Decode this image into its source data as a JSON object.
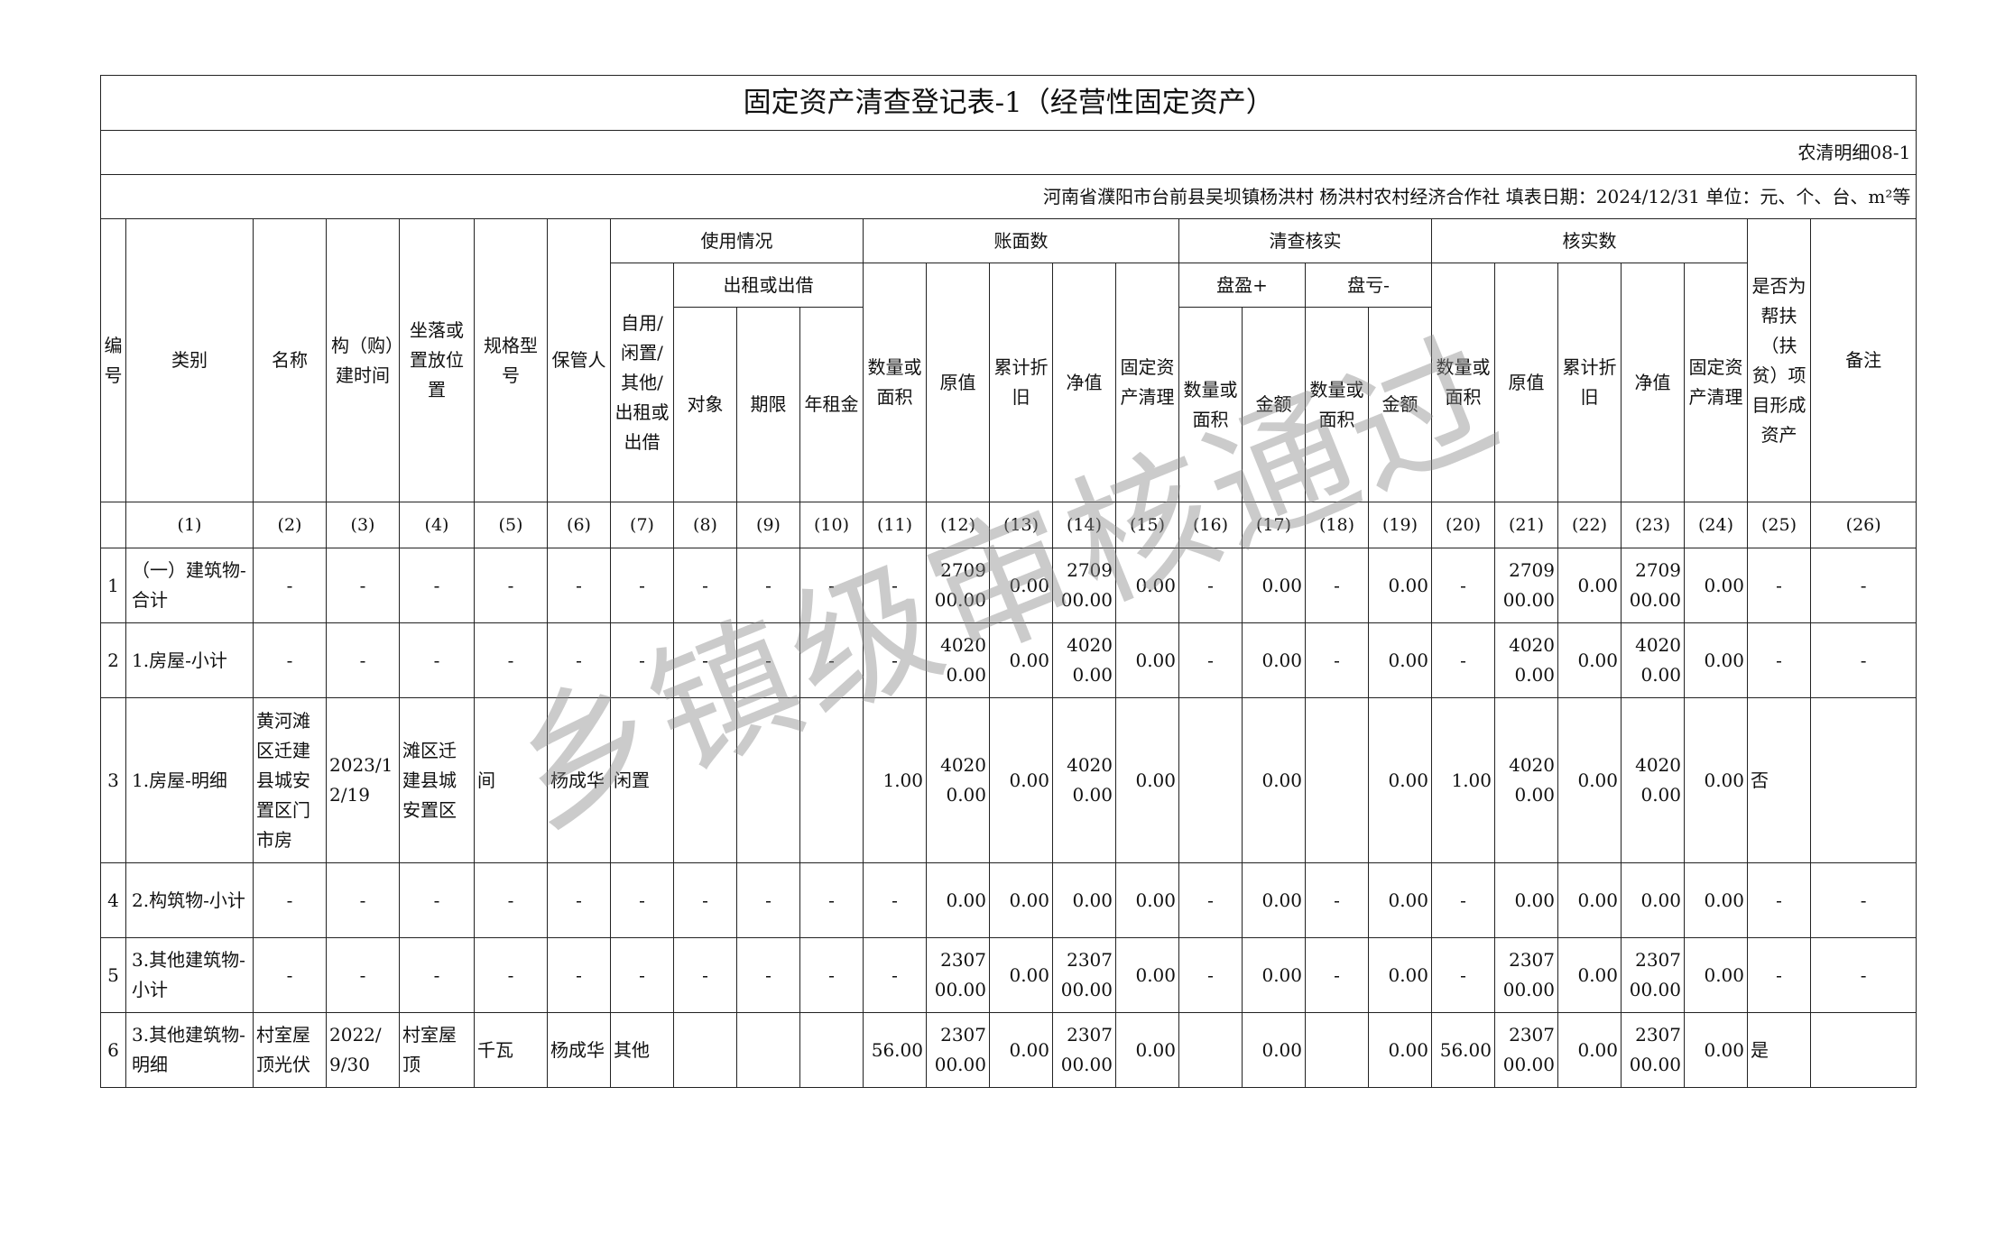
{
  "title": "固定资产清查登记表-1（经营性固定资产）",
  "form_code": "农清明细08-1",
  "info_line": "河南省濮阳市台前县吴坝镇杨洪村  杨洪村农村经济合作社  填表日期：2024/12/31  单位：元、个、台、m²等",
  "watermark": "乡镇级审核通过",
  "headers": {
    "no": "编号",
    "category": "类别",
    "name": "名称",
    "build_time": "构（购）建时间",
    "location": "坐落或置放位置",
    "spec": "规格型号",
    "keeper": "保管人",
    "usage": "使用情况",
    "usage_status": "自用/闲置/其他/出租或出借",
    "lease": "出租或出借",
    "lease_object": "对象",
    "lease_term": "期限",
    "annual_rent": "年租金",
    "book": "账面数",
    "check": "清查核实",
    "surplus": "盘盈+",
    "loss": "盘亏-",
    "verified": "核实数",
    "qty_area": "数量或面积",
    "original": "原值",
    "depreciation": "累计折旧",
    "net": "净值",
    "clearing": "固定资产清理",
    "amount": "金额",
    "poverty": "是否为帮扶（扶贫）项目形成资产",
    "remark": "备注"
  },
  "index_row": [
    "(1)",
    "(2)",
    "(3)",
    "(4)",
    "(5)",
    "(6)",
    "(7)",
    "(8)",
    "(9)",
    "(10)",
    "(11)",
    "(12)",
    "(13)",
    "(14)",
    "(15)",
    "(16)",
    "(17)",
    "(18)",
    "(19)",
    "(20)",
    "(21)",
    "(22)",
    "(23)",
    "(24)",
    "(25)",
    "(26)"
  ],
  "rows": [
    {
      "no": "1",
      "cells": [
        "（一）建筑物-合计",
        "-",
        "-",
        "-",
        "-",
        "-",
        "-",
        "-",
        "-",
        "-",
        "-",
        "270900.00",
        "0.00",
        "270900.00",
        "0.00",
        "-",
        "0.00",
        "-",
        "0.00",
        "-",
        "270900.00",
        "0.00",
        "270900.00",
        "0.00",
        "-",
        "-"
      ]
    },
    {
      "no": "2",
      "cells": [
        "1.房屋-小计",
        "-",
        "-",
        "-",
        "-",
        "-",
        "-",
        "-",
        "-",
        "-",
        "-",
        "40200.00",
        "0.00",
        "40200.00",
        "0.00",
        "-",
        "0.00",
        "-",
        "0.00",
        "-",
        "40200.00",
        "0.00",
        "40200.00",
        "0.00",
        "-",
        "-"
      ]
    },
    {
      "no": "3",
      "tall": true,
      "cells": [
        "1.房屋-明细",
        "黄河滩区迁建县城安置区门市房",
        "2023/12/19",
        "滩区迁建县城安置区",
        "间",
        "杨成华",
        "闲置",
        "",
        "",
        "",
        "1.00",
        "40200.00",
        "0.00",
        "40200.00",
        "0.00",
        "",
        "0.00",
        "",
        "0.00",
        "1.00",
        "40200.00",
        "0.00",
        "40200.00",
        "0.00",
        "否",
        ""
      ]
    },
    {
      "no": "4",
      "cells": [
        "2.构筑物-小计",
        "-",
        "-",
        "-",
        "-",
        "-",
        "-",
        "-",
        "-",
        "-",
        "-",
        "0.00",
        "0.00",
        "0.00",
        "0.00",
        "-",
        "0.00",
        "-",
        "0.00",
        "-",
        "0.00",
        "0.00",
        "0.00",
        "0.00",
        "-",
        "-"
      ]
    },
    {
      "no": "5",
      "cells": [
        "3.其他建筑物-小计",
        "-",
        "-",
        "-",
        "-",
        "-",
        "-",
        "-",
        "-",
        "-",
        "-",
        "230700.00",
        "0.00",
        "230700.00",
        "0.00",
        "-",
        "0.00",
        "-",
        "0.00",
        "-",
        "230700.00",
        "0.00",
        "230700.00",
        "0.00",
        "-",
        "-"
      ]
    },
    {
      "no": "6",
      "cells": [
        "3.其他建筑物-明细",
        "村室屋顶光伏",
        "2022/9/30",
        "村室屋顶",
        "千瓦",
        "杨成华",
        "其他",
        "",
        "",
        "",
        "56.00",
        "230700.00",
        "0.00",
        "230700.00",
        "0.00",
        "",
        "0.00",
        "",
        "0.00",
        "56.00",
        "230700.00",
        "0.00",
        "230700.00",
        "0.00",
        "是",
        ""
      ]
    }
  ]
}
